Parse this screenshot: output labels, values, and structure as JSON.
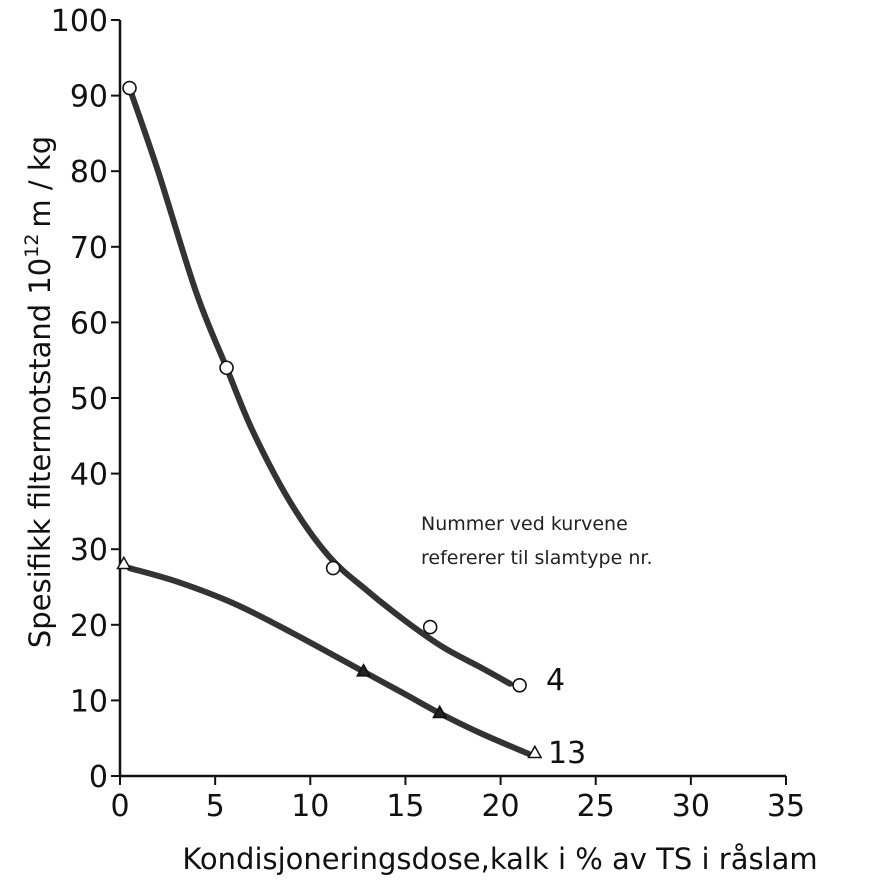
{
  "chart_data": {
    "type": "line",
    "title": "",
    "xlabel": "Kondisjoneringsdose,kalk i % av TS i råslam",
    "ylabel": "Spesifikk filtermotstand 10^12 m/kg",
    "ylabel_parts": {
      "main": "Spesifikk filtermotstand 10",
      "sup": "12",
      "unit": "m / kg"
    },
    "xlim": [
      0,
      35
    ],
    "ylim": [
      0,
      100
    ],
    "xticks": [
      0,
      5,
      10,
      15,
      20,
      25,
      30,
      35
    ],
    "yticks": [
      0,
      10,
      20,
      30,
      40,
      50,
      60,
      70,
      80,
      90,
      100
    ],
    "grid": false,
    "annotation": [
      "Nummer ved kurvene",
      "refererer til slamtype nr."
    ],
    "series": [
      {
        "label": "4",
        "marker": "circle",
        "points": [
          [
            0.5,
            91
          ],
          [
            5.6,
            54
          ],
          [
            11.2,
            27.5
          ],
          [
            16.3,
            19.7
          ],
          [
            21,
            12
          ]
        ],
        "curve": [
          [
            0.5,
            91
          ],
          [
            2,
            80
          ],
          [
            4,
            64
          ],
          [
            5.6,
            54
          ],
          [
            7,
            45.5
          ],
          [
            9,
            36
          ],
          [
            11,
            29
          ],
          [
            13,
            24.5
          ],
          [
            15,
            20.5
          ],
          [
            17,
            17
          ],
          [
            19,
            14.3
          ],
          [
            20.5,
            12.2
          ]
        ]
      },
      {
        "label": "13",
        "marker": "triangle",
        "points": [
          [
            0.2,
            28
          ],
          [
            21.8,
            3
          ]
        ],
        "curve_markers": [
          [
            12.8,
            13.8
          ],
          [
            16.8,
            8.3
          ]
        ],
        "curve": [
          [
            0.5,
            27.5
          ],
          [
            3,
            25.7
          ],
          [
            6,
            22.8
          ],
          [
            9,
            19
          ],
          [
            12.8,
            13.8
          ],
          [
            15,
            10.8
          ],
          [
            16.8,
            8.3
          ],
          [
            19,
            5.6
          ],
          [
            21.5,
            2.9
          ]
        ]
      }
    ]
  }
}
